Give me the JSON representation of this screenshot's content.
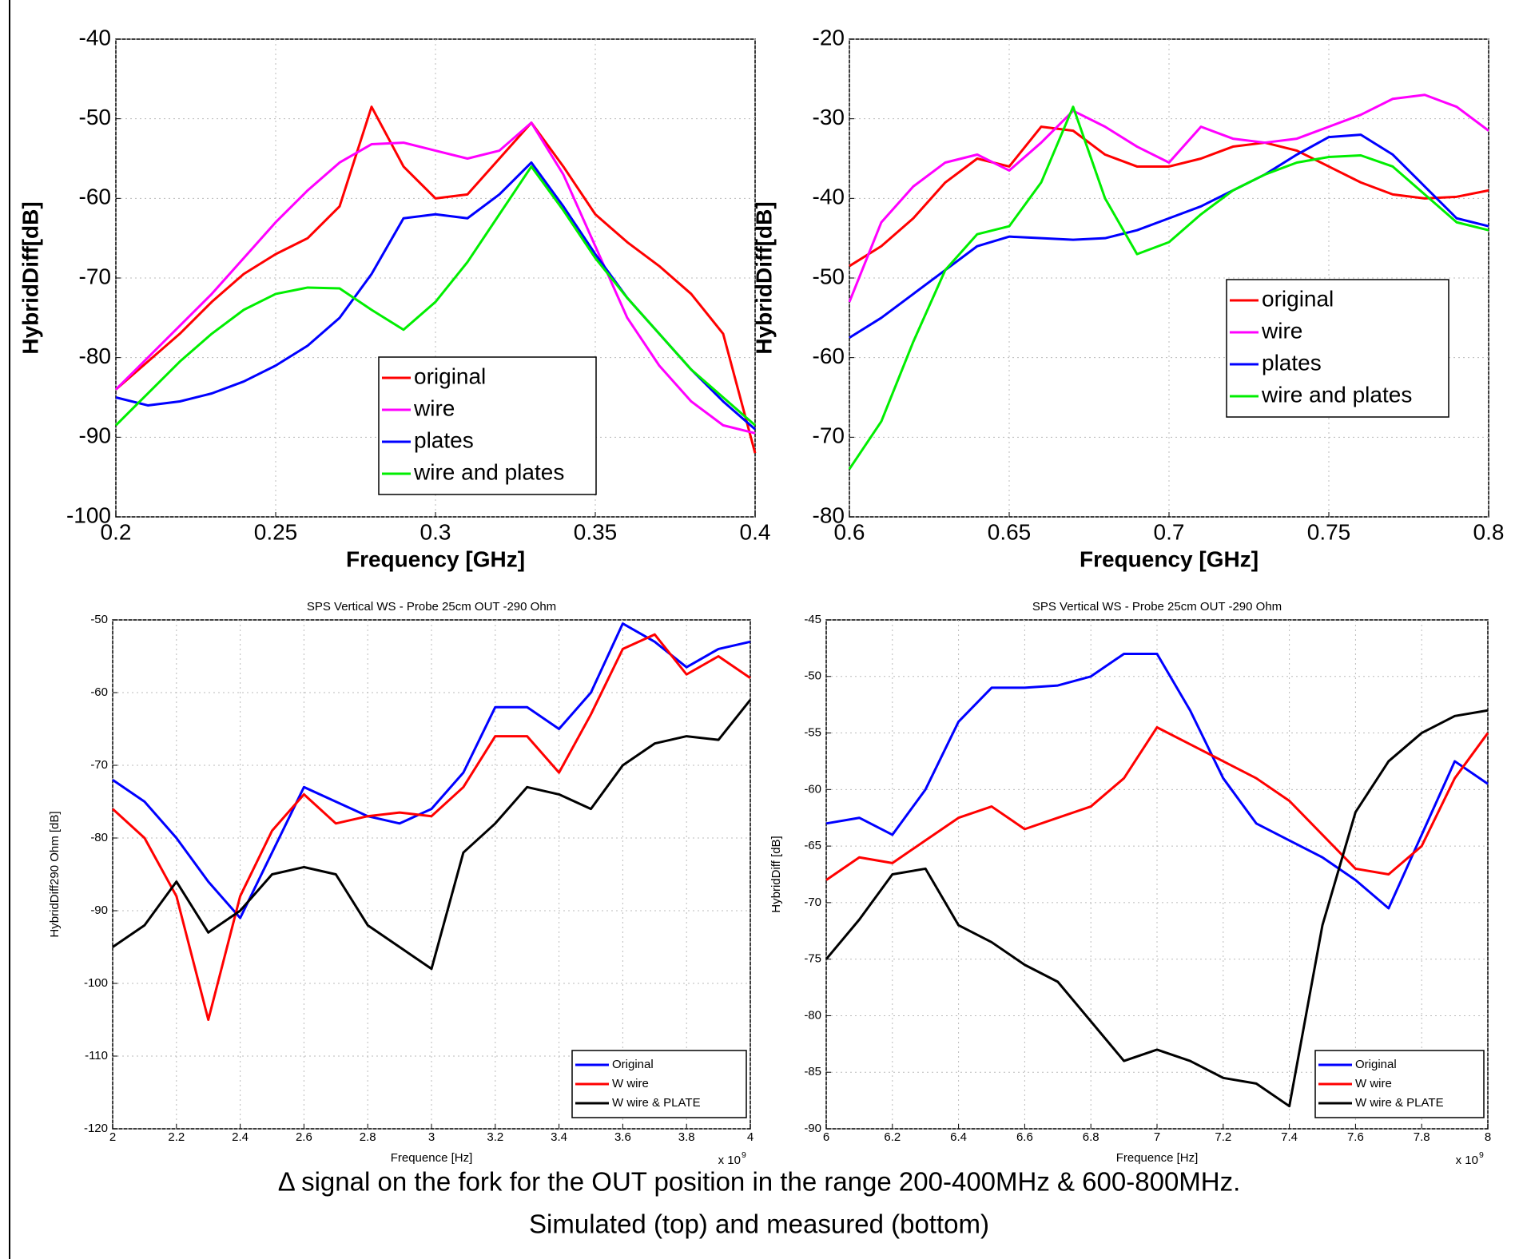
{
  "chart_data": [
    {
      "type": "line",
      "x": [
        0.2,
        0.21,
        0.22,
        0.23,
        0.24,
        0.25,
        0.26,
        0.27,
        0.28,
        0.29,
        0.3,
        0.31,
        0.32,
        0.33,
        0.34,
        0.35,
        0.36,
        0.37,
        0.38,
        0.39,
        0.4
      ],
      "x_label": "Frequency [GHz]",
      "y_label": "HybridDiff[dB]",
      "xlim": [
        0.2,
        0.4
      ],
      "xticks": [
        0.2,
        0.25,
        0.3,
        0.35,
        0.4
      ],
      "ylim": [
        -100,
        -40
      ],
      "yticks": [
        -100,
        -90,
        -80,
        -70,
        -60,
        -50,
        -40
      ],
      "grid": true,
      "legend_position": "lower center",
      "series": [
        {
          "name": "original",
          "color": "#ff0000",
          "values": [
            -84,
            -80.5,
            -77,
            -73,
            -69.5,
            -67,
            -65,
            -61,
            -48.5,
            -56,
            -60,
            -59.5,
            -55,
            -50.5,
            -56,
            -62,
            -65.5,
            -68.5,
            -72,
            -77,
            -92
          ]
        },
        {
          "name": "wire",
          "color": "#ff00ff",
          "values": [
            -84,
            -80,
            -76,
            -72,
            -67.5,
            -63,
            -59,
            -55.5,
            -53.2,
            -53,
            -54,
            -55,
            -54,
            -50.5,
            -57,
            -66,
            -75,
            -81,
            -85.5,
            -88.5,
            -89.5
          ]
        },
        {
          "name": "plates",
          "color": "#0000ff",
          "values": [
            -85,
            -86,
            -85.5,
            -84.5,
            -83,
            -81,
            -78.5,
            -75,
            -69.5,
            -62.5,
            -62,
            -62.5,
            -59.5,
            -55.5,
            -61,
            -67,
            -72.5,
            -77,
            -81.5,
            -85.5,
            -89
          ]
        },
        {
          "name": "wire and plates",
          "color": "#00ee00",
          "values": [
            -88.5,
            -84.5,
            -80.5,
            -77,
            -74,
            -72,
            -71.2,
            -71.3,
            -74,
            -76.5,
            -73,
            -68,
            -62,
            -56,
            -61.5,
            -67.5,
            -72.5,
            -77,
            -81.5,
            -85,
            -88.5
          ]
        }
      ]
    },
    {
      "type": "line",
      "x": [
        0.6,
        0.61,
        0.62,
        0.63,
        0.64,
        0.65,
        0.66,
        0.67,
        0.68,
        0.69,
        0.7,
        0.71,
        0.72,
        0.73,
        0.74,
        0.75,
        0.76,
        0.77,
        0.78,
        0.79,
        0.8
      ],
      "x_label": "Frequency [GHz]",
      "y_label": "HybridDiff[dB]",
      "xlim": [
        0.6,
        0.8
      ],
      "xticks": [
        0.6,
        0.65,
        0.7,
        0.75,
        0.8
      ],
      "ylim": [
        -80,
        -20
      ],
      "yticks": [
        -80,
        -70,
        -60,
        -50,
        -40,
        -30,
        -20
      ],
      "grid": true,
      "legend_position": "center right",
      "series": [
        {
          "name": "original",
          "color": "#ff0000",
          "values": [
            -48.5,
            -46,
            -42.5,
            -38,
            -35,
            -36,
            -31,
            -31.5,
            -34.5,
            -36,
            -36,
            -35,
            -33.5,
            -33,
            -34,
            -36,
            -38,
            -39.5,
            -40,
            -39.8,
            -39
          ]
        },
        {
          "name": "wire",
          "color": "#ff00ff",
          "values": [
            -53,
            -43,
            -38.5,
            -35.5,
            -34.5,
            -36.5,
            -33,
            -29,
            -31,
            -33.5,
            -35.5,
            -31,
            -32.5,
            -33,
            -32.5,
            -31,
            -29.5,
            -27.5,
            -27,
            -28.5,
            -31.5
          ]
        },
        {
          "name": "plates",
          "color": "#0000ff",
          "values": [
            -57.5,
            -55,
            -52,
            -49,
            -46,
            -44.8,
            -45,
            -45.2,
            -45,
            -44,
            -42.5,
            -41,
            -39,
            -37,
            -34.5,
            -32.3,
            -32,
            -34.5,
            -38.5,
            -42.5,
            -43.5
          ]
        },
        {
          "name": "wire and plates",
          "color": "#00ee00",
          "values": [
            -74,
            -68,
            -58,
            -49,
            -44.5,
            -43.5,
            -38,
            -28.5,
            -40,
            -47,
            -45.5,
            -42,
            -39,
            -37,
            -35.5,
            -34.8,
            -34.6,
            -36,
            -39.5,
            -43,
            -44
          ]
        }
      ]
    },
    {
      "type": "line",
      "title": "SPS Vertical WS  - Probe 25cm OUT -290 Ohm",
      "x": [
        2,
        2.1,
        2.2,
        2.3,
        2.4,
        2.5,
        2.6,
        2.7,
        2.8,
        2.9,
        3,
        3.1,
        3.2,
        3.3,
        3.4,
        3.5,
        3.6,
        3.7,
        3.8,
        3.9,
        4
      ],
      "x_label": "Frequence [Hz]",
      "y_label": "HybridDiff290 Ohm [dB]",
      "x_scale_label": "x 10",
      "x_scale_exponent": "9",
      "xlim": [
        2,
        4
      ],
      "xticks": [
        2,
        2.2,
        2.4,
        2.6,
        2.8,
        3,
        3.2,
        3.4,
        3.6,
        3.8,
        4
      ],
      "ylim": [
        -120,
        -50
      ],
      "yticks": [
        -120,
        -110,
        -100,
        -90,
        -80,
        -70,
        -60,
        -50
      ],
      "grid": true,
      "legend_position": "lower right",
      "series": [
        {
          "name": "Original",
          "color": "#0000ff",
          "values": [
            -72,
            -75,
            -80,
            -86,
            -91,
            -82,
            -73,
            -75,
            -77,
            -78,
            -76,
            -71,
            -62,
            -62,
            -65,
            -60,
            -50.5,
            -53,
            -56.5,
            -54,
            -53
          ]
        },
        {
          "name": "W wire",
          "color": "#ff0000",
          "values": [
            -76,
            -80,
            -88,
            -105,
            -88,
            -79,
            -74,
            -78,
            -77,
            -76.5,
            -77,
            -73,
            -66,
            -66,
            -71,
            -63,
            -54,
            -52,
            -57.5,
            -55,
            -58
          ]
        },
        {
          "name": "W wire & PLATE",
          "color": "#000000",
          "values": [
            -95,
            -92,
            -86,
            -93,
            -90,
            -85,
            -84,
            -85,
            -92,
            -95,
            -98,
            -82,
            -78,
            -73,
            -74,
            -76,
            -70,
            -67,
            -66,
            -66.5,
            -61
          ]
        }
      ]
    },
    {
      "type": "line",
      "title": "SPS Vertical WS  - Probe 25cm OUT -290 Ohm",
      "x": [
        6,
        6.1,
        6.2,
        6.3,
        6.4,
        6.5,
        6.6,
        6.7,
        6.8,
        6.9,
        7,
        7.1,
        7.2,
        7.3,
        7.4,
        7.5,
        7.6,
        7.7,
        7.8,
        7.9,
        8
      ],
      "x_label": "Frequence [Hz]",
      "y_label": "HybridDiff [dB]",
      "x_scale_label": "x 10",
      "x_scale_exponent": "9",
      "xlim": [
        6,
        8
      ],
      "xticks": [
        6,
        6.2,
        6.4,
        6.6,
        6.8,
        7,
        7.2,
        7.4,
        7.6,
        7.8,
        8
      ],
      "ylim": [
        -90,
        -45
      ],
      "yticks": [
        -90,
        -85,
        -80,
        -75,
        -70,
        -65,
        -60,
        -55,
        -50,
        -45
      ],
      "grid": true,
      "legend_position": "lower right",
      "series": [
        {
          "name": "Original",
          "color": "#0000ff",
          "values": [
            -63,
            -62.5,
            -64,
            -60,
            -54,
            -51,
            -51,
            -50.8,
            -50,
            -48,
            -48,
            -53,
            -59,
            -63,
            -64.5,
            -66,
            -68,
            -70.5,
            -64,
            -57.5,
            -59.5
          ]
        },
        {
          "name": "W wire",
          "color": "#ff0000",
          "values": [
            -68,
            -66,
            -66.5,
            -64.5,
            -62.5,
            -61.5,
            -63.5,
            -62.5,
            -61.5,
            -59,
            -54.5,
            -56,
            -57.5,
            -59,
            -61,
            -64,
            -67,
            -67.5,
            -65,
            -59,
            -55
          ]
        },
        {
          "name": "W wire & PLATE",
          "color": "#000000",
          "values": [
            -75,
            -71.5,
            -67.5,
            -67,
            -72,
            -73.5,
            -75.5,
            -77,
            -80.5,
            -84,
            -83,
            -84,
            -85.5,
            -86,
            -88,
            -72,
            -62,
            -57.5,
            -55,
            -53.5,
            -53
          ]
        }
      ]
    }
  ],
  "caption": [
    "Δ signal on the fork for the OUT position in the range 200-400MHz & 600-800MHz.",
    "Simulated (top) and measured (bottom)"
  ]
}
